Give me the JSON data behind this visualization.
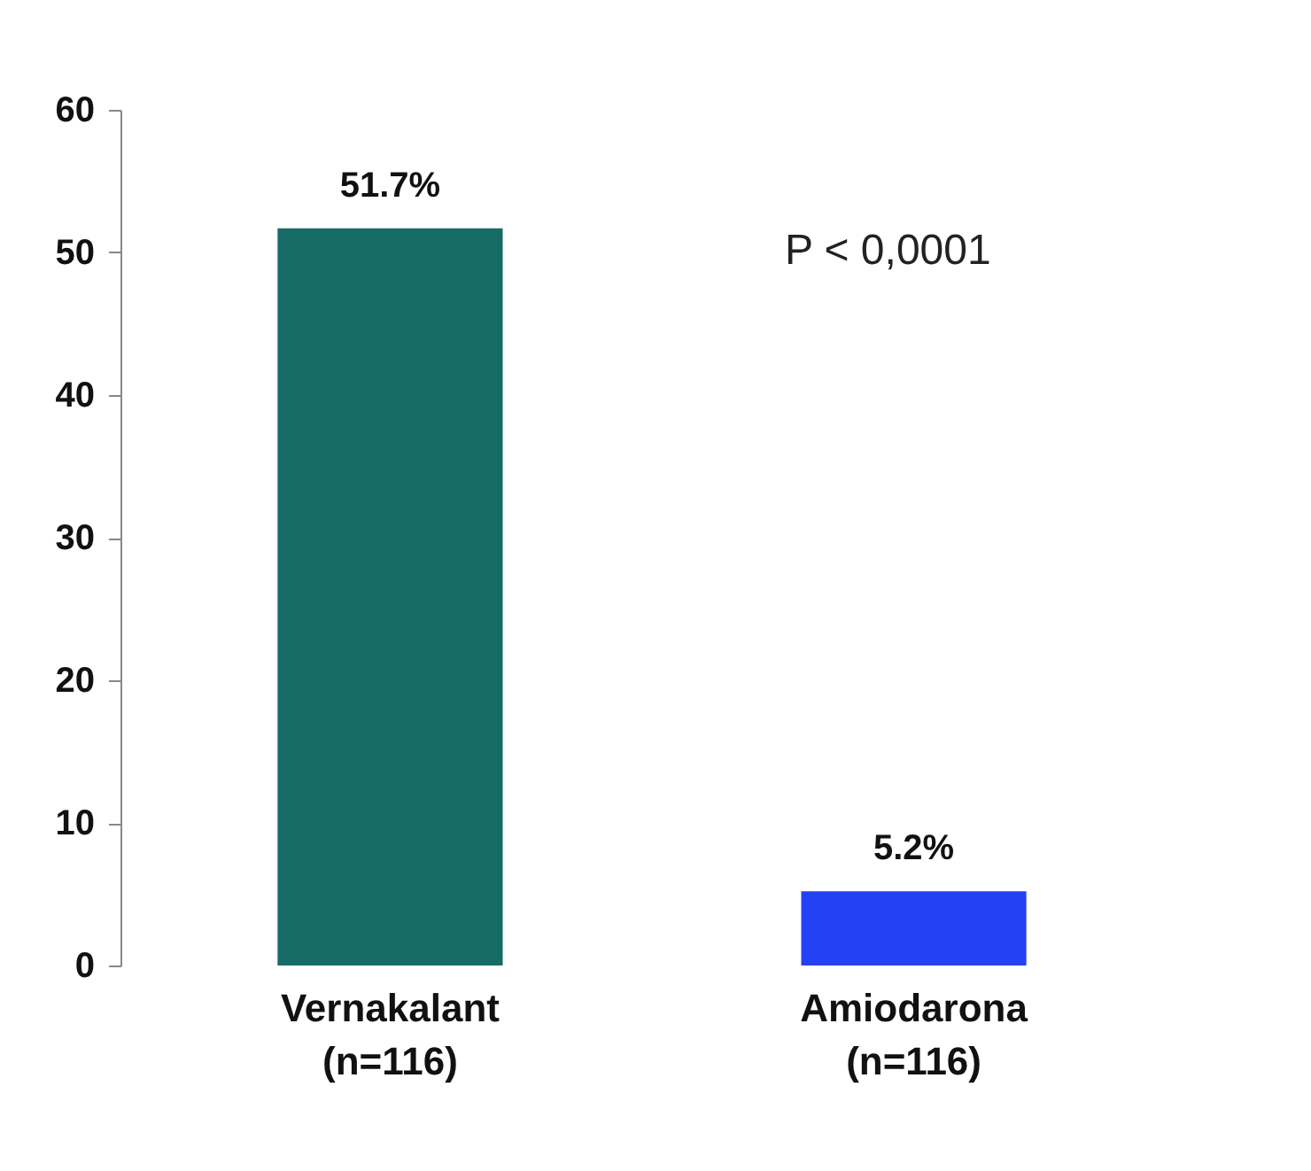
{
  "chart_data": {
    "type": "bar",
    "categories": [
      "Vernakalant\n(n=116)",
      "Amiodarona\n(n=116)"
    ],
    "values": [
      51.7,
      5.2
    ],
    "colors": [
      "#176b67",
      "#2342f5"
    ],
    "value_labels": [
      "51.7%",
      "5.2%"
    ],
    "ylim": [
      0,
      60
    ],
    "yticks": [
      0,
      10,
      20,
      30,
      40,
      50,
      60
    ],
    "grid": false,
    "annotations": [
      "P < 0,0001"
    ]
  }
}
